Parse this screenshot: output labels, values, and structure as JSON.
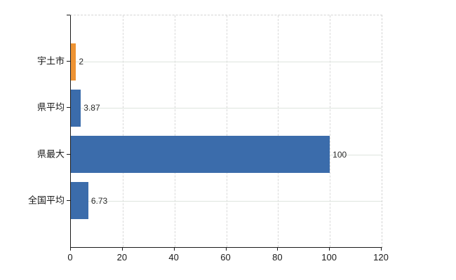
{
  "chart_data": {
    "type": "bar",
    "orientation": "horizontal",
    "categories": [
      "宇土市",
      "県平均",
      "県最大",
      "全国平均"
    ],
    "values": [
      2,
      3.87,
      100,
      6.73
    ],
    "value_labels": [
      "2",
      "3.87",
      "100",
      "6.73"
    ],
    "bar_colors": [
      "#ee9333",
      "#3b6cab",
      "#3b6cab",
      "#3b6cab"
    ],
    "xlim": [
      0,
      120
    ],
    "x_ticks": [
      0,
      20,
      40,
      60,
      80,
      100,
      120
    ],
    "grid": true,
    "legend_position": "none",
    "title": "",
    "xlabel": "",
    "ylabel": ""
  },
  "colors": {
    "bar_blue": "#3b6cab",
    "bar_orange": "#ee9333",
    "axis": "#1a1a1a",
    "grid_vertical": "#d9d9d9",
    "grid_horizontal": "#dee4de",
    "plot_border_dashed": "#d4d4d4",
    "text": "#2b2b2b",
    "background": "#ffffff"
  }
}
